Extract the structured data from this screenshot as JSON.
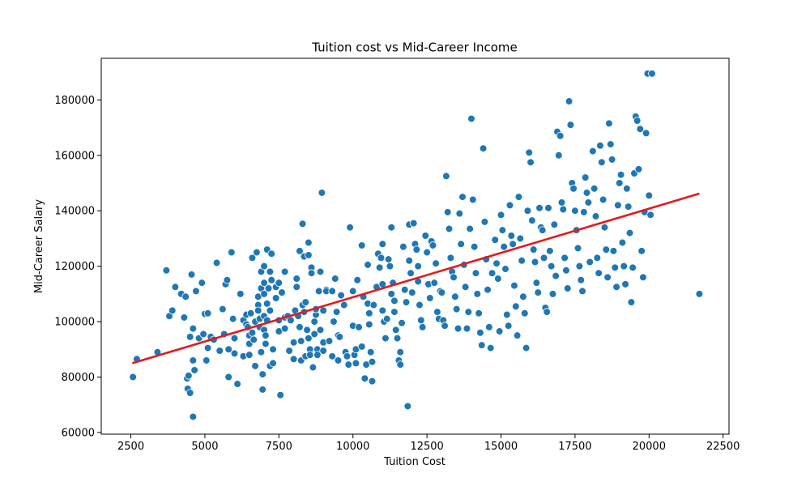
{
  "chart_data": {
    "type": "scatter",
    "title": "Tuition cost vs Mid-Career Income",
    "xlabel": "Tuition Cost",
    "ylabel": "Mid-Career Salary",
    "xlim": [
      1500,
      22700
    ],
    "ylim": [
      59400,
      195000
    ],
    "x_ticks": [
      2500,
      5000,
      7500,
      10000,
      12500,
      15000,
      17500,
      20000,
      22500
    ],
    "y_ticks": [
      60000,
      80000,
      100000,
      120000,
      140000,
      160000,
      180000
    ],
    "grid": false,
    "point_color": "#1f77b4",
    "point_edge_color": "#ffffff",
    "trend_color": "#e31a1c",
    "trend_line": {
      "x": [
        2550,
        21700
      ],
      "y": [
        85000,
        146200
      ]
    },
    "points": [
      [
        2570,
        80000
      ],
      [
        2700,
        86500
      ],
      [
        3400,
        89000
      ],
      [
        3700,
        118500
      ],
      [
        3800,
        102000
      ],
      [
        3900,
        104000
      ],
      [
        4000,
        112500
      ],
      [
        4200,
        110000
      ],
      [
        4300,
        101500
      ],
      [
        4350,
        109000
      ],
      [
        4400,
        79500
      ],
      [
        4420,
        75800
      ],
      [
        4450,
        80500
      ],
      [
        4500,
        74300
      ],
      [
        4500,
        94500
      ],
      [
        4550,
        117000
      ],
      [
        4600,
        97500
      ],
      [
        4600,
        86000
      ],
      [
        4600,
        65700
      ],
      [
        4650,
        82500
      ],
      [
        4700,
        111000
      ],
      [
        4800,
        94000
      ],
      [
        4900,
        114000
      ],
      [
        4950,
        95500
      ],
      [
        5000,
        102800
      ],
      [
        5050,
        86000
      ],
      [
        5100,
        103000
      ],
      [
        5100,
        90500
      ],
      [
        5200,
        94500
      ],
      [
        5300,
        93500
      ],
      [
        5400,
        121200
      ],
      [
        5500,
        89500
      ],
      [
        5600,
        104500
      ],
      [
        5650,
        95500
      ],
      [
        5700,
        113500
      ],
      [
        5750,
        115000
      ],
      [
        5800,
        80000
      ],
      [
        5800,
        90000
      ],
      [
        5900,
        125000
      ],
      [
        5950,
        101000
      ],
      [
        6000,
        94000
      ],
      [
        6000,
        88500
      ],
      [
        6100,
        77500
      ],
      [
        6200,
        110000
      ],
      [
        6300,
        100500
      ],
      [
        6300,
        87500
      ],
      [
        6400,
        99000
      ],
      [
        6400,
        102500
      ],
      [
        6450,
        98000
      ],
      [
        6500,
        92000
      ],
      [
        6500,
        95000
      ],
      [
        6500,
        88000
      ],
      [
        6550,
        103000
      ],
      [
        6600,
        123000
      ],
      [
        6600,
        96000
      ],
      [
        6650,
        93500
      ],
      [
        6700,
        84000
      ],
      [
        6700,
        100000
      ],
      [
        6750,
        125000
      ],
      [
        6800,
        109000
      ],
      [
        6800,
        106000
      ],
      [
        6800,
        104000
      ],
      [
        6850,
        101000
      ],
      [
        6850,
        98000
      ],
      [
        6900,
        112000
      ],
      [
        6900,
        118000
      ],
      [
        6900,
        89000
      ],
      [
        6950,
        75500
      ],
      [
        6950,
        81000
      ],
      [
        7000,
        120000
      ],
      [
        7000,
        114000
      ],
      [
        7000,
        110000
      ],
      [
        7000,
        102000
      ],
      [
        7000,
        97000
      ],
      [
        7050,
        95000
      ],
      [
        7050,
        92000
      ],
      [
        7100,
        126000
      ],
      [
        7100,
        106500
      ],
      [
        7100,
        100500
      ],
      [
        7150,
        112000
      ],
      [
        7200,
        118000
      ],
      [
        7200,
        104000
      ],
      [
        7200,
        84000
      ],
      [
        7250,
        124500
      ],
      [
        7250,
        115000
      ],
      [
        7300,
        90000
      ],
      [
        7300,
        85000
      ],
      [
        7400,
        108500
      ],
      [
        7400,
        112500
      ],
      [
        7500,
        114000
      ],
      [
        7500,
        100500
      ],
      [
        7500,
        96500
      ],
      [
        7550,
        73500
      ],
      [
        7600,
        110500
      ],
      [
        7700,
        101500
      ],
      [
        7700,
        118000
      ],
      [
        7700,
        97500
      ],
      [
        7800,
        102000
      ],
      [
        7850,
        89500
      ],
      [
        7900,
        100500
      ],
      [
        8000,
        86500
      ],
      [
        8000,
        92500
      ],
      [
        8050,
        104000
      ],
      [
        8100,
        115500
      ],
      [
        8100,
        112500
      ],
      [
        8150,
        102000
      ],
      [
        8200,
        125500
      ],
      [
        8200,
        98000
      ],
      [
        8250,
        93000
      ],
      [
        8250,
        86000
      ],
      [
        8300,
        135300
      ],
      [
        8300,
        106000
      ],
      [
        8350,
        123500
      ],
      [
        8350,
        103500
      ],
      [
        8400,
        107000
      ],
      [
        8400,
        87500
      ],
      [
        8450,
        97000
      ],
      [
        8500,
        128500
      ],
      [
        8500,
        124000
      ],
      [
        8500,
        94000
      ],
      [
        8550,
        90000
      ],
      [
        8550,
        88000
      ],
      [
        8600,
        119500
      ],
      [
        8600,
        117500
      ],
      [
        8650,
        83500
      ],
      [
        8700,
        100000
      ],
      [
        8700,
        95500
      ],
      [
        8750,
        102500
      ],
      [
        8750,
        104500
      ],
      [
        8800,
        90000
      ],
      [
        8800,
        88000
      ],
      [
        8850,
        111000
      ],
      [
        8900,
        118000
      ],
      [
        8900,
        97000
      ],
      [
        8950,
        146500
      ],
      [
        9000,
        104000
      ],
      [
        9000,
        92500
      ],
      [
        9000,
        89500
      ],
      [
        9100,
        111500
      ],
      [
        9100,
        111000
      ],
      [
        9200,
        93000
      ],
      [
        9300,
        111000
      ],
      [
        9300,
        87500
      ],
      [
        9350,
        100000
      ],
      [
        9400,
        115500
      ],
      [
        9450,
        103500
      ],
      [
        9500,
        95000
      ],
      [
        9500,
        86000
      ],
      [
        9550,
        94500
      ],
      [
        9600,
        109500
      ],
      [
        9700,
        106000
      ],
      [
        9750,
        89000
      ],
      [
        9800,
        87500
      ],
      [
        9850,
        84500
      ],
      [
        9900,
        134000
      ],
      [
        10000,
        111000
      ],
      [
        10000,
        98500
      ],
      [
        10050,
        88000
      ],
      [
        10100,
        90000
      ],
      [
        10100,
        85000
      ],
      [
        10150,
        115000
      ],
      [
        10200,
        98000
      ],
      [
        10300,
        127500
      ],
      [
        10300,
        91000
      ],
      [
        10350,
        109000
      ],
      [
        10400,
        79500
      ],
      [
        10450,
        84500
      ],
      [
        10500,
        120500
      ],
      [
        10500,
        106500
      ],
      [
        10550,
        103000
      ],
      [
        10550,
        99000
      ],
      [
        10600,
        89000
      ],
      [
        10650,
        85500
      ],
      [
        10650,
        78500
      ],
      [
        10700,
        106000
      ],
      [
        10800,
        112500
      ],
      [
        10850,
        124500
      ],
      [
        10900,
        119500
      ],
      [
        10950,
        123000
      ],
      [
        11000,
        128000
      ],
      [
        11000,
        113500
      ],
      [
        11000,
        104000
      ],
      [
        11050,
        100000
      ],
      [
        11100,
        94000
      ],
      [
        11150,
        101000
      ],
      [
        11200,
        122500
      ],
      [
        11250,
        120000
      ],
      [
        11300,
        134000
      ],
      [
        11300,
        110000
      ],
      [
        11350,
        114000
      ],
      [
        11400,
        107500
      ],
      [
        11400,
        103500
      ],
      [
        11450,
        97000
      ],
      [
        11500,
        94000
      ],
      [
        11550,
        86000
      ],
      [
        11600,
        89000
      ],
      [
        11600,
        84500
      ],
      [
        11650,
        99500
      ],
      [
        11700,
        127000
      ],
      [
        11750,
        111500
      ],
      [
        11800,
        107000
      ],
      [
        11850,
        69500
      ],
      [
        11900,
        135000
      ],
      [
        11900,
        122000
      ],
      [
        11950,
        117500
      ],
      [
        12000,
        110500
      ],
      [
        12050,
        135500
      ],
      [
        12100,
        128000
      ],
      [
        12150,
        126000
      ],
      [
        12200,
        120000
      ],
      [
        12200,
        114500
      ],
      [
        12250,
        106000
      ],
      [
        12300,
        100500
      ],
      [
        12350,
        98000
      ],
      [
        12450,
        131000
      ],
      [
        12500,
        125000
      ],
      [
        12550,
        113500
      ],
      [
        12600,
        108500
      ],
      [
        12650,
        129000
      ],
      [
        12700,
        127500
      ],
      [
        12750,
        114000
      ],
      [
        12800,
        121000
      ],
      [
        12850,
        103500
      ],
      [
        12900,
        101000
      ],
      [
        12950,
        111000
      ],
      [
        13000,
        110500
      ],
      [
        13050,
        100500
      ],
      [
        13100,
        98500
      ],
      [
        13150,
        152500
      ],
      [
        13200,
        139500
      ],
      [
        13250,
        133500
      ],
      [
        13300,
        123000
      ],
      [
        13350,
        118000
      ],
      [
        13400,
        116000
      ],
      [
        13450,
        109000
      ],
      [
        13500,
        104500
      ],
      [
        13550,
        97500
      ],
      [
        13600,
        139000
      ],
      [
        13650,
        128000
      ],
      [
        13700,
        145000
      ],
      [
        13750,
        120500
      ],
      [
        13800,
        112500
      ],
      [
        13850,
        97500
      ],
      [
        13900,
        103500
      ],
      [
        13950,
        133500
      ],
      [
        14000,
        173200
      ],
      [
        14050,
        144000
      ],
      [
        14100,
        127000
      ],
      [
        14150,
        117500
      ],
      [
        14200,
        110000
      ],
      [
        14250,
        103000
      ],
      [
        14300,
        96000
      ],
      [
        14350,
        91500
      ],
      [
        14400,
        162500
      ],
      [
        14450,
        136000
      ],
      [
        14500,
        122500
      ],
      [
        14550,
        111500
      ],
      [
        14600,
        98000
      ],
      [
        14650,
        90500
      ],
      [
        14700,
        117500
      ],
      [
        14800,
        129500
      ],
      [
        14850,
        121000
      ],
      [
        14900,
        115500
      ],
      [
        14950,
        96500
      ],
      [
        15000,
        138500
      ],
      [
        15050,
        133000
      ],
      [
        15100,
        127000
      ],
      [
        15150,
        119000
      ],
      [
        15200,
        102500
      ],
      [
        15250,
        98500
      ],
      [
        15300,
        142000
      ],
      [
        15350,
        131000
      ],
      [
        15400,
        128000
      ],
      [
        15450,
        113000
      ],
      [
        15500,
        105500
      ],
      [
        15550,
        95000
      ],
      [
        15600,
        145000
      ],
      [
        15650,
        130000
      ],
      [
        15700,
        122000
      ],
      [
        15750,
        109000
      ],
      [
        15800,
        103000
      ],
      [
        15850,
        90500
      ],
      [
        15900,
        140000
      ],
      [
        15950,
        161000
      ],
      [
        16000,
        157500
      ],
      [
        16050,
        136500
      ],
      [
        16100,
        126000
      ],
      [
        16150,
        121500
      ],
      [
        16200,
        114000
      ],
      [
        16250,
        110500
      ],
      [
        16300,
        141000
      ],
      [
        16350,
        134000
      ],
      [
        16400,
        133000
      ],
      [
        16450,
        123000
      ],
      [
        16500,
        105000
      ],
      [
        16550,
        103500
      ],
      [
        16600,
        141000
      ],
      [
        16650,
        125500
      ],
      [
        16700,
        120000
      ],
      [
        16750,
        110000
      ],
      [
        16800,
        135000
      ],
      [
        16850,
        116500
      ],
      [
        16900,
        168500
      ],
      [
        16950,
        160000
      ],
      [
        17000,
        167000
      ],
      [
        17050,
        143000
      ],
      [
        17100,
        140500
      ],
      [
        17150,
        123000
      ],
      [
        17200,
        118500
      ],
      [
        17250,
        112000
      ],
      [
        17300,
        179500
      ],
      [
        17350,
        171000
      ],
      [
        17400,
        150000
      ],
      [
        17450,
        148000
      ],
      [
        17500,
        140000
      ],
      [
        17550,
        133000
      ],
      [
        17600,
        126500
      ],
      [
        17650,
        120000
      ],
      [
        17700,
        115000
      ],
      [
        17750,
        111000
      ],
      [
        17800,
        139500
      ],
      [
        17850,
        152000
      ],
      [
        17900,
        146500
      ],
      [
        17950,
        143000
      ],
      [
        18000,
        121500
      ],
      [
        18100,
        161500
      ],
      [
        18150,
        148000
      ],
      [
        18200,
        138000
      ],
      [
        18250,
        123000
      ],
      [
        18300,
        117500
      ],
      [
        18350,
        163500
      ],
      [
        18400,
        157500
      ],
      [
        18450,
        144000
      ],
      [
        18500,
        134000
      ],
      [
        18550,
        126000
      ],
      [
        18600,
        116000
      ],
      [
        18650,
        171500
      ],
      [
        18700,
        164000
      ],
      [
        18750,
        158500
      ],
      [
        18800,
        125500
      ],
      [
        18850,
        119500
      ],
      [
        18900,
        112500
      ],
      [
        18950,
        142000
      ],
      [
        19000,
        150000
      ],
      [
        19050,
        153000
      ],
      [
        19100,
        128500
      ],
      [
        19150,
        120000
      ],
      [
        19200,
        113500
      ],
      [
        19250,
        148000
      ],
      [
        19300,
        141500
      ],
      [
        19350,
        132000
      ],
      [
        19400,
        107000
      ],
      [
        19450,
        119500
      ],
      [
        19500,
        153500
      ],
      [
        19550,
        174000
      ],
      [
        19600,
        172500
      ],
      [
        19650,
        155000
      ],
      [
        19700,
        169500
      ],
      [
        19750,
        125500
      ],
      [
        19800,
        116000
      ],
      [
        19850,
        139500
      ],
      [
        19900,
        168000
      ],
      [
        19950,
        189500
      ],
      [
        20000,
        145500
      ],
      [
        20050,
        138500
      ],
      [
        20100,
        189500
      ],
      [
        21700,
        110000
      ]
    ]
  }
}
